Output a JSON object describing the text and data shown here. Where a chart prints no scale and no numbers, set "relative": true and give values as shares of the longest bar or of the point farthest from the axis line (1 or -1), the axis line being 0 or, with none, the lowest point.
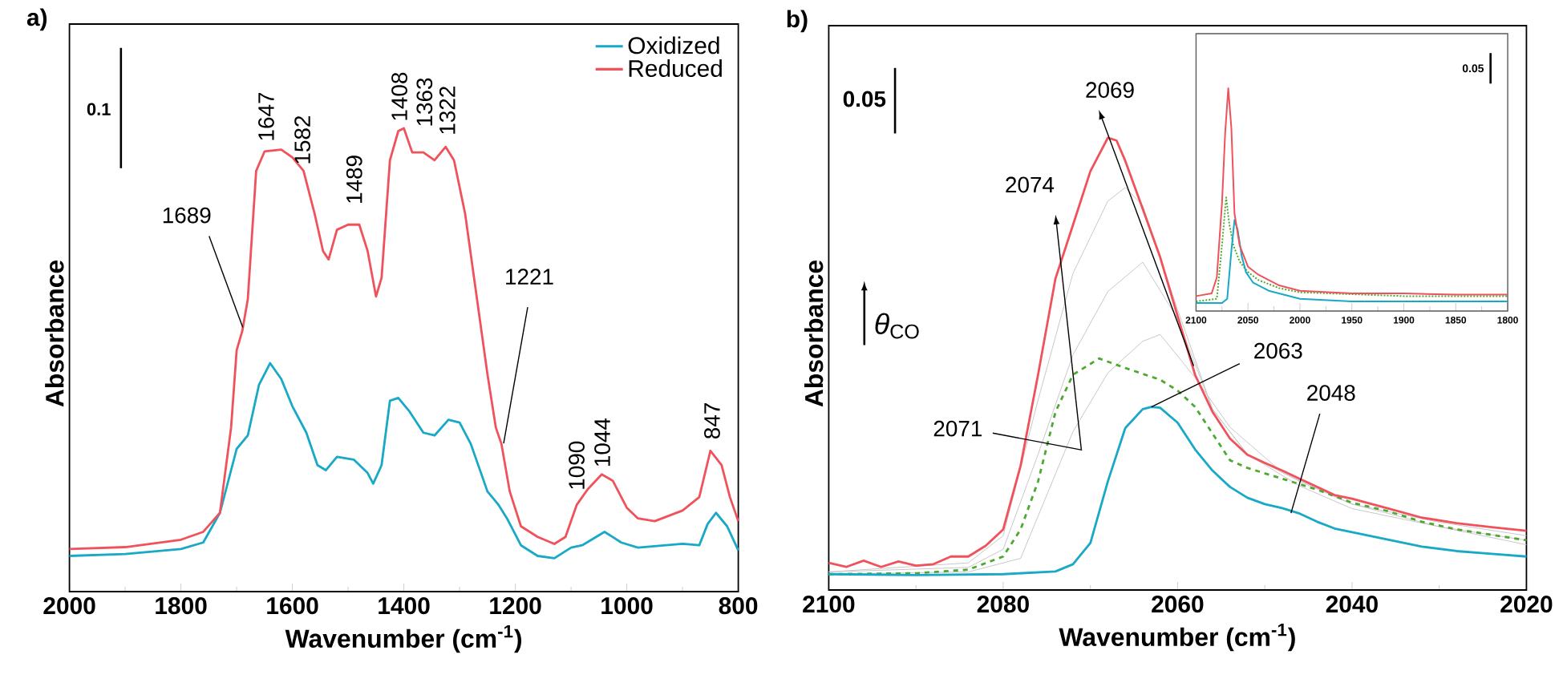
{
  "chart_data": [
    {
      "type": "line",
      "title": "a)",
      "xlabel": "Wavenumber (cm$^{-1}$)",
      "ylabel": "Absorbance",
      "relative": true,
      "xlim": [
        2000,
        800
      ],
      "xticks": [
        2000,
        1800,
        1600,
        1400,
        1200,
        1000,
        800
      ],
      "legend": "top right",
      "series": [
        {
          "name": "Oxidized",
          "color": "#17a9c5",
          "x": [
            2000,
            1900,
            1800,
            1760,
            1730,
            1700,
            1680,
            1660,
            1640,
            1620,
            1600,
            1575,
            1555,
            1540,
            1520,
            1490,
            1465,
            1455,
            1440,
            1425,
            1410,
            1390,
            1365,
            1345,
            1320,
            1300,
            1280,
            1250,
            1230,
            1215,
            1190,
            1160,
            1130,
            1100,
            1080,
            1040,
            1010,
            980,
            900,
            870,
            855,
            840,
            820,
            800
          ],
          "values": [
            0.077,
            0.081,
            0.092,
            0.106,
            0.17,
            0.308,
            0.337,
            0.446,
            0.493,
            0.459,
            0.4,
            0.343,
            0.273,
            0.262,
            0.291,
            0.285,
            0.256,
            0.233,
            0.273,
            0.412,
            0.418,
            0.389,
            0.343,
            0.337,
            0.371,
            0.365,
            0.319,
            0.216,
            0.187,
            0.158,
            0.1,
            0.077,
            0.072,
            0.095,
            0.1,
            0.129,
            0.106,
            0.095,
            0.103,
            0.1,
            0.146,
            0.17,
            0.141,
            0.089
          ]
        },
        {
          "name": "Reduced",
          "color": "#f0525c",
          "x": [
            2000,
            1900,
            1800,
            1760,
            1730,
            1710,
            1700,
            1690,
            1680,
            1665,
            1650,
            1620,
            1600,
            1580,
            1560,
            1545,
            1535,
            1520,
            1500,
            1480,
            1465,
            1450,
            1440,
            1425,
            1410,
            1400,
            1385,
            1365,
            1345,
            1325,
            1310,
            1290,
            1270,
            1250,
            1235,
            1225,
            1210,
            1190,
            1160,
            1130,
            1110,
            1090,
            1070,
            1045,
            1025,
            1000,
            980,
            950,
            900,
            870,
            850,
            830,
            815,
            800
          ],
          "values": [
            0.092,
            0.096,
            0.112,
            0.129,
            0.17,
            0.354,
            0.521,
            0.562,
            0.631,
            0.908,
            0.95,
            0.954,
            0.937,
            0.908,
            0.815,
            0.735,
            0.717,
            0.781,
            0.792,
            0.792,
            0.735,
            0.637,
            0.677,
            0.931,
            0.994,
            1.0,
            0.948,
            0.948,
            0.931,
            0.96,
            0.931,
            0.815,
            0.642,
            0.469,
            0.354,
            0.319,
            0.216,
            0.141,
            0.118,
            0.103,
            0.118,
            0.187,
            0.221,
            0.253,
            0.239,
            0.181,
            0.158,
            0.152,
            0.175,
            0.204,
            0.304,
            0.273,
            0.204,
            0.152
          ]
        }
      ],
      "annotations": [
        "0.1",
        {
          "text": "1689",
          "x": 1689,
          "y": 0.57
        },
        {
          "text": "1647",
          "x": 1647,
          "y": 0.95
        },
        {
          "text": "1582",
          "x": 1582,
          "y": 0.91
        },
        {
          "text": "1489",
          "x": 1489,
          "y": 0.79
        },
        {
          "text": "1408",
          "x": 1408,
          "y": 1.0
        },
        {
          "text": "1363",
          "x": 1363,
          "y": 0.95
        },
        {
          "text": "1322",
          "x": 1322,
          "y": 0.96
        },
        {
          "text": "1221",
          "x": 1221,
          "y": 0.32
        },
        {
          "text": "1090",
          "x": 1090,
          "y": 0.19
        },
        {
          "text": "1044",
          "x": 1044,
          "y": 0.25
        },
        {
          "text": "847",
          "x": 847,
          "y": 0.3
        }
      ]
    },
    {
      "type": "line",
      "title": "b)",
      "xlabel": "Wavenumber (cm$^{-1}$)",
      "ylabel": "Absorbance",
      "relative": true,
      "xlim": [
        2100,
        2020
      ],
      "xticks": [
        2100,
        2080,
        2060,
        2040,
        2020
      ],
      "series": [
        {
          "color": "#c8c8c8",
          "x": [
            2100,
            2084,
            2080,
            2076,
            2072,
            2068,
            2066,
            2064,
            2060,
            2056,
            2052,
            2046,
            2040,
            2030,
            2020
          ],
          "values": [
            0.04,
            0.06,
            0.12,
            0.42,
            0.7,
            0.86,
            0.89,
            0.85,
            0.62,
            0.4,
            0.3,
            0.24,
            0.19,
            0.15,
            0.12
          ]
        },
        {
          "color": "#c8c8c8",
          "x": [
            2100,
            2084,
            2080,
            2076,
            2072,
            2068,
            2064,
            2060,
            2056,
            2052,
            2046,
            2040,
            2030,
            2020
          ],
          "values": [
            0.04,
            0.05,
            0.09,
            0.3,
            0.52,
            0.66,
            0.725,
            0.6,
            0.4,
            0.3,
            0.23,
            0.18,
            0.14,
            0.11
          ]
        },
        {
          "color": "#c8c8c8",
          "x": [
            2100,
            2084,
            2078,
            2072,
            2068,
            2064,
            2062,
            2058,
            2054,
            2048,
            2040,
            2030,
            2020
          ],
          "values": [
            0.035,
            0.04,
            0.07,
            0.35,
            0.48,
            0.55,
            0.565,
            0.47,
            0.36,
            0.26,
            0.19,
            0.14,
            0.1
          ]
        },
        {
          "color": "#4ea832",
          "line_style": "dashed",
          "x": [
            2100,
            2090,
            2084,
            2080,
            2078,
            2076,
            2074,
            2072,
            2070,
            2069,
            2066,
            2062,
            2060,
            2058,
            2056,
            2054,
            2052,
            2048,
            2044,
            2040,
            2036,
            2032,
            2028,
            2024,
            2020
          ],
          "values": [
            0.035,
            0.037,
            0.045,
            0.074,
            0.134,
            0.24,
            0.394,
            0.476,
            0.5,
            0.512,
            0.491,
            0.465,
            0.441,
            0.405,
            0.346,
            0.287,
            0.27,
            0.246,
            0.222,
            0.193,
            0.175,
            0.151,
            0.134,
            0.122,
            0.11
          ]
        },
        {
          "color": "#17a9c5",
          "x": [
            2100,
            2090,
            2080,
            2074,
            2072,
            2070,
            2068,
            2066,
            2064,
            2063,
            2062,
            2060,
            2058,
            2056,
            2054,
            2052,
            2050,
            2048,
            2046,
            2044,
            2042,
            2040,
            2036,
            2032,
            2028,
            2024,
            2020
          ],
          "values": [
            0.035,
            0.033,
            0.035,
            0.041,
            0.057,
            0.104,
            0.24,
            0.358,
            0.4,
            0.405,
            0.403,
            0.37,
            0.311,
            0.264,
            0.228,
            0.204,
            0.19,
            0.181,
            0.169,
            0.151,
            0.136,
            0.128,
            0.112,
            0.096,
            0.086,
            0.08,
            0.074
          ]
        },
        {
          "color": "#f0525c",
          "x": [
            2100,
            2098,
            2096,
            2094,
            2092,
            2090,
            2088,
            2086,
            2084,
            2082,
            2080,
            2078,
            2076,
            2074,
            2072,
            2070,
            2068,
            2067,
            2066,
            2064,
            2062,
            2060,
            2058,
            2056,
            2054,
            2052,
            2050,
            2048,
            2046,
            2044,
            2042,
            2040,
            2036,
            2032,
            2028,
            2024,
            2020
          ],
          "values": [
            0.06,
            0.051,
            0.065,
            0.051,
            0.063,
            0.054,
            0.057,
            0.074,
            0.074,
            0.098,
            0.134,
            0.275,
            0.476,
            0.689,
            0.807,
            0.926,
            1.0,
            0.994,
            0.949,
            0.843,
            0.736,
            0.606,
            0.476,
            0.394,
            0.335,
            0.299,
            0.281,
            0.264,
            0.246,
            0.228,
            0.21,
            0.202,
            0.181,
            0.16,
            0.148,
            0.139,
            0.131
          ]
        }
      ],
      "annotations": [
        "0.05",
        "*θ*$_{CO}$",
        "2074",
        "2069",
        "2071",
        {
          "text": "2063",
          "x": 2063,
          "y": 0.405
        },
        {
          "text": "2048",
          "x": 2047,
          "y": 0.17
        }
      ]
    },
    {
      "type": "line",
      "relative": true,
      "xlim": [
        2100,
        1800
      ],
      "xticks": [
        2100,
        2050,
        2000,
        1950,
        1900,
        1850,
        1800
      ],
      "series": [
        {
          "color": "#4ea832",
          "line_style": "dotted",
          "x": [
            2100,
            2080,
            2076,
            2071,
            2068,
            2064,
            2058,
            2050,
            2040,
            2020,
            2000,
            1900,
            1800
          ],
          "values": [
            0.043,
            0.055,
            0.246,
            0.51,
            0.39,
            0.294,
            0.222,
            0.175,
            0.139,
            0.103,
            0.084,
            0.067,
            0.067
          ]
        },
        {
          "color": "#17a9c5",
          "x": [
            2100,
            2075,
            2070,
            2066,
            2063,
            2060,
            2056,
            2052,
            2045,
            2030,
            2010,
            2000,
            1950,
            1850,
            1800
          ],
          "values": [
            0.036,
            0.036,
            0.055,
            0.27,
            0.409,
            0.366,
            0.246,
            0.175,
            0.127,
            0.091,
            0.067,
            0.055,
            0.043,
            0.043,
            0.043
          ]
        },
        {
          "color": "#f0525c",
          "x": [
            2100,
            2085,
            2080,
            2075,
            2072,
            2069,
            2066,
            2063,
            2058,
            2050,
            2040,
            2030,
            2020,
            2000,
            1950,
            1900,
            1850,
            1800
          ],
          "values": [
            0.067,
            0.079,
            0.151,
            0.486,
            0.797,
            1.0,
            0.821,
            0.438,
            0.294,
            0.199,
            0.163,
            0.139,
            0.115,
            0.091,
            0.079,
            0.079,
            0.074,
            0.074
          ]
        }
      ],
      "annotations": [
        "0.05"
      ]
    }
  ]
}
